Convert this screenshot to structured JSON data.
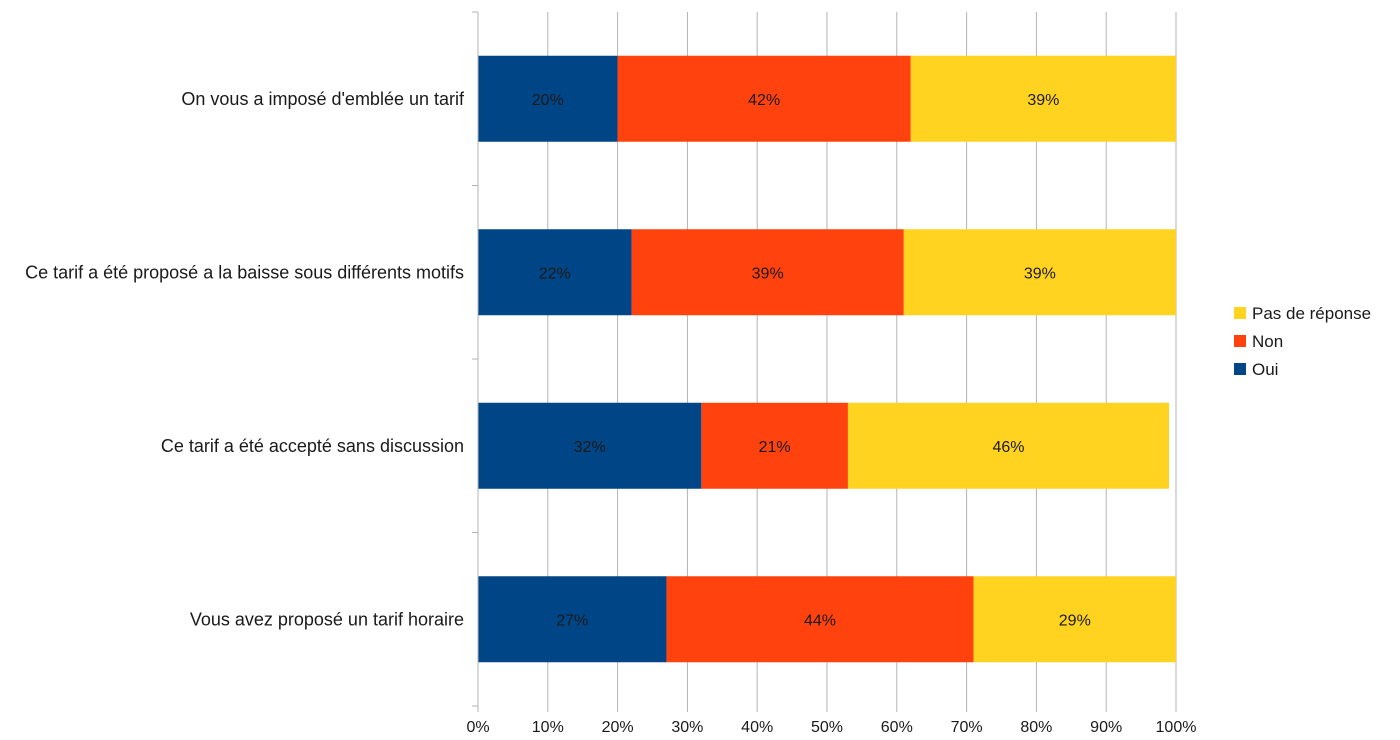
{
  "chart_data": {
    "type": "bar",
    "orientation": "horizontal",
    "stacked": true,
    "percent_stacked": true,
    "categories": [
      "On vous a imposé d'emblée un tarif",
      "Ce tarif a été proposé a la baisse sous différents motifs",
      "Ce tarif a été accepté sans discussion",
      "Vous avez proposé un tarif horaire"
    ],
    "series": [
      {
        "name": "Oui",
        "color": "#004586",
        "values": [
          20,
          22,
          32,
          27
        ],
        "labels": [
          "20%",
          "22%",
          "32%",
          "27%"
        ]
      },
      {
        "name": "Non",
        "color": "#ff420e",
        "values": [
          42,
          39,
          21,
          44
        ],
        "labels": [
          "42%",
          "39%",
          "21%",
          "44%"
        ]
      },
      {
        "name": "Pas de réponse",
        "color": "#ffd320",
        "values": [
          39,
          39,
          46,
          29
        ],
        "labels": [
          "39%",
          "39%",
          "46%",
          "29%"
        ]
      }
    ],
    "xlim": [
      0,
      100
    ],
    "xticks": [
      "0%",
      "10%",
      "20%",
      "30%",
      "40%",
      "50%",
      "60%",
      "70%",
      "80%",
      "90%",
      "100%"
    ],
    "grid": true,
    "legend_position": "right",
    "legend_order": [
      "Pas de réponse",
      "Non",
      "Oui"
    ],
    "title": "",
    "xlabel": "",
    "ylabel": ""
  }
}
